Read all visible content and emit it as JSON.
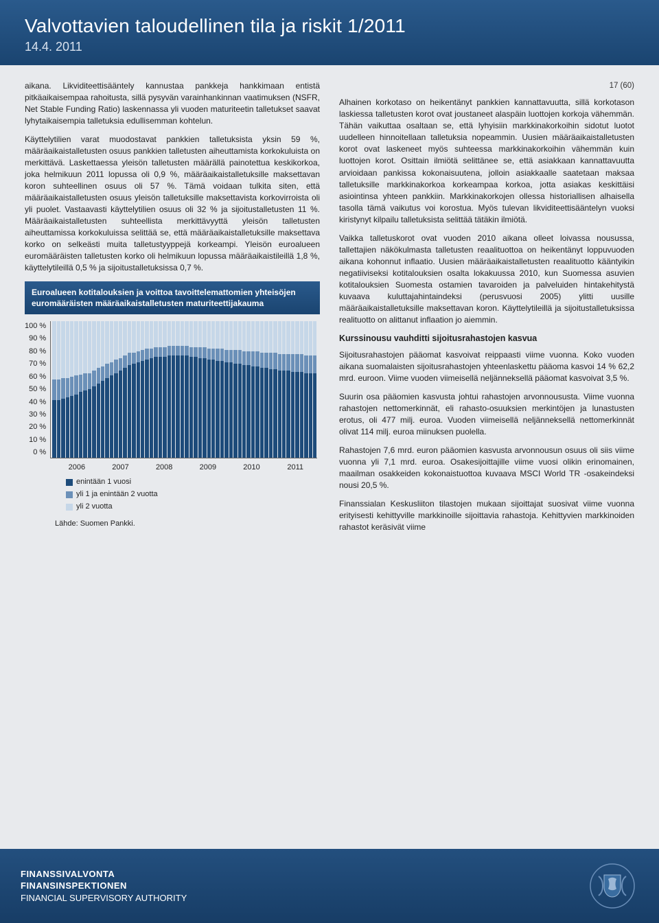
{
  "header": {
    "title": "Valvottavien taloudellinen tila ja riskit 1/2011",
    "date": "14.4. 2011"
  },
  "page_number": "17 (60)",
  "left_column": {
    "p1": "aikana. Likviditeettisääntely kannustaa pankkeja hankkimaan entistä pitkäaikaisempaa rahoitusta, sillä pysyvän varainhankinnan vaatimuksen (NSFR, Net Stable Funding Ratio) laskennassa yli vuoden maturiteetin talletukset saavat lyhytaikaisempia talletuksia edullisemman kohtelun.",
    "p2": "Käyttelytilien varat muodostavat pankkien talletuksista yksin 59 %, määräaikaistalletusten osuus pankkien talletusten aiheuttamista korkokuluista on merkittävä. Laskettaessa yleisön talletusten määrällä painotettua keskikorkoa, joka helmikuun 2011 lopussa oli 0,9 %, määräaikaistalletuksille maksettavan koron suhteellinen osuus oli 57 %. Tämä voidaan tulkita siten, että määräaikaistalletusten osuus yleisön talletuksille maksettavista korkovirroista oli yli puolet. Vastaavasti käyttelytilien osuus oli 32 % ja sijoitustalletusten 11 %. Määräaikaistalletusten suhteellista merkittävyyttä yleisön talletusten aiheuttamissa korkokuluissa selittää se, että määräaikaistalletuksille maksettava korko on selkeästi muita talletustyyppejä korkeampi. Yleisön euroalueen euromääräisten talletusten korko oli helmikuun lopussa määräaikaistileillä 1,8 %, käyttelytileillä 0,5 % ja sijoitustalletuksissa 0,7 %."
  },
  "chart": {
    "type": "stacked-area-bar",
    "title": "Euroalueen kotitalouksien ja voittoa tavoittelemattomien yhteisöjen euromääräisten määräaikaistalletusten maturiteettijakauma",
    "y_ticks": [
      "100 %",
      "90 %",
      "80 %",
      "70 %",
      "60 %",
      "50 %",
      "40 %",
      "30 %",
      "20 %",
      "10 %",
      "0 %"
    ],
    "x_ticks": [
      "2006",
      "2007",
      "2008",
      "2009",
      "2010",
      "2011"
    ],
    "series": [
      {
        "label": "enintään 1 vuosi",
        "color": "#1d4b7a"
      },
      {
        "label": "yli 1 ja enintään 2 vuotta",
        "color": "#6b90b8"
      },
      {
        "label": "yli 2 vuotta",
        "color": "#c6d7e8"
      }
    ],
    "bars": [
      [
        42,
        15,
        43
      ],
      [
        42,
        15,
        43
      ],
      [
        43,
        15,
        42
      ],
      [
        44,
        14,
        42
      ],
      [
        45,
        14,
        41
      ],
      [
        46,
        14,
        40
      ],
      [
        48,
        13,
        39
      ],
      [
        49,
        13,
        38
      ],
      [
        50,
        12,
        38
      ],
      [
        52,
        12,
        36
      ],
      [
        54,
        12,
        34
      ],
      [
        56,
        11,
        33
      ],
      [
        58,
        11,
        31
      ],
      [
        60,
        10,
        30
      ],
      [
        62,
        10,
        28
      ],
      [
        64,
        9,
        27
      ],
      [
        66,
        9,
        25
      ],
      [
        68,
        9,
        23
      ],
      [
        69,
        8,
        23
      ],
      [
        70,
        8,
        22
      ],
      [
        71,
        8,
        21
      ],
      [
        72,
        8,
        20
      ],
      [
        73,
        7,
        20
      ],
      [
        74,
        7,
        19
      ],
      [
        74,
        7,
        19
      ],
      [
        74,
        7,
        19
      ],
      [
        75,
        7,
        18
      ],
      [
        75,
        7,
        18
      ],
      [
        75,
        7,
        18
      ],
      [
        75,
        7,
        18
      ],
      [
        75,
        7,
        18
      ],
      [
        74,
        7,
        19
      ],
      [
        74,
        7,
        19
      ],
      [
        73,
        8,
        19
      ],
      [
        73,
        8,
        19
      ],
      [
        72,
        8,
        20
      ],
      [
        72,
        8,
        20
      ],
      [
        71,
        9,
        20
      ],
      [
        71,
        9,
        20
      ],
      [
        70,
        9,
        21
      ],
      [
        70,
        9,
        21
      ],
      [
        69,
        10,
        21
      ],
      [
        69,
        10,
        21
      ],
      [
        68,
        10,
        22
      ],
      [
        68,
        10,
        22
      ],
      [
        67,
        11,
        22
      ],
      [
        67,
        11,
        22
      ],
      [
        66,
        11,
        23
      ],
      [
        66,
        11,
        23
      ],
      [
        65,
        12,
        23
      ],
      [
        65,
        12,
        23
      ],
      [
        64,
        12,
        24
      ],
      [
        64,
        12,
        24
      ],
      [
        64,
        12,
        24
      ],
      [
        63,
        13,
        24
      ],
      [
        63,
        13,
        24
      ],
      [
        63,
        13,
        24
      ],
      [
        62,
        13,
        25
      ],
      [
        62,
        13,
        25
      ],
      [
        62,
        13,
        25
      ]
    ],
    "source": "Lähde: Suomen Pankki.",
    "background": "#e8eaed"
  },
  "right_column": {
    "p1": "Alhainen korkotaso on heikentänyt pankkien kannattavuutta, sillä korkotason laskiessa talletusten korot ovat joustaneet alaspäin luottojen korkoja vähemmän. Tähän vaikuttaa osaltaan se, että lyhyisiin markkinakorkoihin sidotut luotot uudelleen hinnoitellaan talletuksia nopeammin. Uusien määräaikaistalletusten korot ovat laskeneet myös suhteessa markkinakorkoihin vähemmän kuin luottojen korot. Osittain ilmiötä selittänee se, että asiakkaan kannattavuutta arvioidaan pankissa kokonaisuutena, jolloin asiakkaalle saatetaan maksaa talletuksille markkinakorkoa korkeampaa korkoa, jotta asiakas keskittäisi asiointinsa yhteen pankkiin. Markkinakorkojen ollessa historiallisen alhaisella tasolla tämä vaikutus voi korostua. Myös tulevan likviditeettisääntelyn vuoksi kiristynyt kilpailu talletuksista selittää tätäkin ilmiötä.",
    "p2": "Vaikka talletuskorot ovat vuoden 2010 aikana olleet loivassa nousussa, tallettajien näkökulmasta talletusten reaalituottoa on heikentänyt loppuvuoden aikana kohonnut inflaatio. Uusien määräaikaistalletusten reaalituotto kääntyikin negatiiviseksi kotitalouksien osalta lokakuussa 2010, kun Suomessa asuvien kotitalouksien Suomesta ostamien tavaroiden ja palveluiden hintakehitystä kuvaava kuluttajahintaindeksi (perusvuosi 2005) ylitti uusille määräaikaistalletuksille maksettavan koron. Käyttelytileillä ja sijoitustalletuksissa realituotto on alittanut inflaation jo aiemmin.",
    "subhead": "Kurssinousu vauhditti sijoitusrahastojen kasvua",
    "p3": "Sijoitusrahastojen pääomat kasvoivat reippaasti viime vuonna. Koko vuoden aikana suomalaisten sijoitusrahastojen yhteenlaskettu pääoma kasvoi 14 % 62,2 mrd. euroon. Viime vuoden viimeisellä neljänneksellä pääomat kasvoivat 3,5 %.",
    "p4": "Suurin osa pääomien kasvusta johtui rahastojen arvonnoususta. Viime vuonna rahastojen nettomerkinnät, eli rahasto-osuuksien merkintöjen ja lunastusten erotus, oli 477 milj. euroa. Vuoden viimeisellä neljänneksellä nettomerkinnät olivat 114 milj. euroa miinuksen puolella.",
    "p5": "Rahastojen 7,6 mrd. euron pääomien kasvusta arvonnousun osuus oli siis viime vuonna yli 7,1 mrd. euroa. Osakesijoittajille viime vuosi olikin erinomainen, maailman osakkeiden kokonaistuottoa kuvaava MSCI World TR -osakeindeksi nousi 20,5 %.",
    "p6": "Finanssialan Keskusliiton tilastojen mukaan sijoittajat suosivat viime vuonna erityisesti kehittyville markkinoille sijoittavia rahastoja. Kehittyvien markkinoiden rahastot keräsivät viime"
  },
  "footer": {
    "line1": "FINANSSIVALVONTA",
    "line2": "FINANSINSPEKTIONEN",
    "line3": "FINANCIAL SUPERVISORY AUTHORITY"
  }
}
